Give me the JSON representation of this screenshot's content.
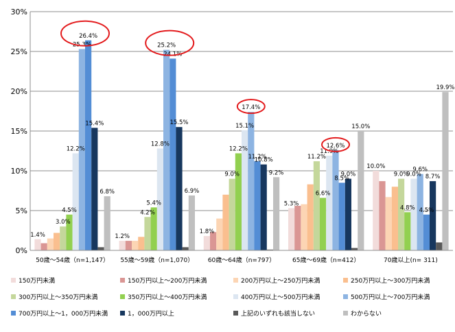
{
  "chart_data": {
    "type": "bar",
    "categories": [
      "50歳～54歳（n=1,147）",
      "55歳～59歳（n=1,070）",
      "60歳～64歳（n=797）",
      "65歳～69歳（n=412）",
      "70歳以上(n= 311)"
    ],
    "y_ticks": [
      "0%",
      "5%",
      "10%",
      "15%",
      "20%",
      "25%",
      "30%"
    ],
    "ylim": [
      0,
      30
    ],
    "grid": true,
    "legend_position": "bottom",
    "series": [
      {
        "name": "150万円未満",
        "color": "#f2dcdb",
        "values": [
          1.4,
          1.2,
          1.8,
          5.3,
          10.0
        ],
        "labels": [
          "1.4%",
          "1.2%",
          "1.8%",
          "5.3%",
          "10.0%"
        ]
      },
      {
        "name": "150万円以上～200万円未満",
        "color": "#da9694",
        "values": [
          0.9,
          1.2,
          2.3,
          5.6,
          8.7
        ],
        "labels": [
          null,
          null,
          null,
          null,
          null
        ]
      },
      {
        "name": "200万円以上～250万円未満",
        "color": "#fcd5b4",
        "values": [
          1.5,
          1.2,
          4.0,
          5.8,
          6.7
        ],
        "labels": [
          null,
          null,
          null,
          null,
          null
        ]
      },
      {
        "name": "250万円以上～300万円未満",
        "color": "#fabf8f",
        "values": [
          2.2,
          1.7,
          7.0,
          8.3,
          8.0
        ],
        "labels": [
          null,
          null,
          null,
          null,
          null
        ]
      },
      {
        "name": "300万円以上～350万円未満",
        "color": "#c4d79b",
        "values": [
          3.0,
          4.2,
          9.0,
          11.2,
          9.0
        ],
        "labels": [
          "3.0%",
          "4.2%",
          "9.0%",
          "11.2%",
          "9.0%"
        ]
      },
      {
        "name": "350万円以上～400万円未満",
        "color": "#92d050",
        "values": [
          4.5,
          5.4,
          12.2,
          6.6,
          4.8
        ],
        "labels": [
          "4.5%",
          "5.4%",
          "12.2%",
          "6.6%",
          "4.8%"
        ]
      },
      {
        "name": "400万円以上～500万円未満",
        "color": "#dce6f1",
        "values": [
          12.2,
          12.8,
          15.1,
          11.9,
          9.0
        ],
        "labels": [
          "12.2%",
          "12.8%",
          "15.1%",
          "11.9%",
          "9.0%"
        ]
      },
      {
        "name": "500万円以上～700万円未満",
        "color": "#8db4e2",
        "values": [
          25.3,
          25.2,
          17.4,
          12.6,
          9.6
        ],
        "labels": [
          "25.3%",
          "25.2%",
          "17.4%",
          "12.6%",
          "9.6%"
        ]
      },
      {
        "name": "700万円以上～1，000万円未満",
        "color": "#538dd5",
        "values": [
          26.4,
          24.1,
          11.2,
          8.5,
          4.5
        ],
        "labels": [
          "26.4%",
          "24.1%",
          "11.2%",
          "8.5%",
          "4.5%"
        ]
      },
      {
        "name": "1，000万円以上",
        "color": "#17375e",
        "values": [
          15.4,
          15.5,
          10.8,
          9.0,
          8.7
        ],
        "labels": [
          "15.4%",
          "15.5%",
          "10.8%",
          "9.0%",
          "8.7%"
        ]
      },
      {
        "name": "上記のいずれも該当しない",
        "color": "#595959",
        "values": [
          0.4,
          0.4,
          0.1,
          0.3,
          1.0
        ],
        "labels": [
          null,
          null,
          null,
          null,
          null
        ]
      },
      {
        "name": "わからない",
        "color": "#bfbfbf",
        "values": [
          6.8,
          6.9,
          9.2,
          15.0,
          19.9
        ],
        "labels": [
          "6.8%",
          "6.9%",
          "9.2%",
          "15.0%",
          "19.9%"
        ]
      }
    ],
    "highlights": [
      {
        "category": 0,
        "series": [
          7,
          8
        ]
      },
      {
        "category": 1,
        "series": [
          7,
          8
        ]
      },
      {
        "category": 2,
        "series": [
          7
        ]
      },
      {
        "category": 3,
        "series": [
          7
        ]
      }
    ],
    "highlight_color": "#e31a1c"
  }
}
